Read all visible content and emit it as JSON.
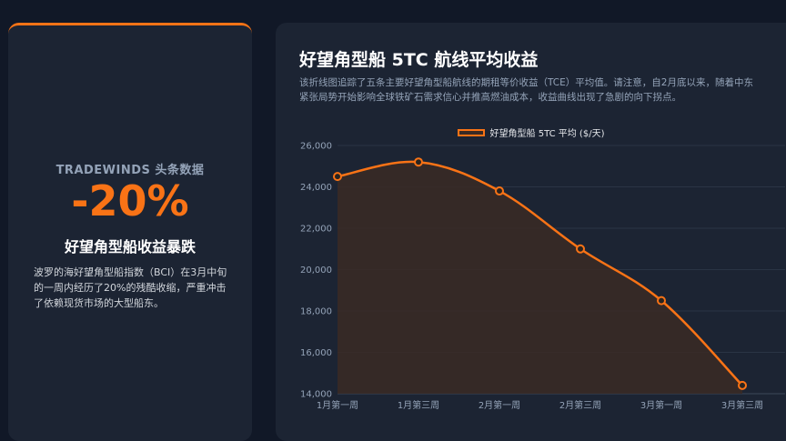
{
  "left_card": {
    "kicker": "TRADEWINDS 头条数据",
    "big_stat": "-20%",
    "headline": "好望角型船收益暴跌",
    "body": "波罗的海好望角型船指数（BCI）在3月中旬的一周内经历了20%的残酷收缩，严重冲击了依赖现货市场的大型船东。"
  },
  "right_card": {
    "title": "好望角型船 5TC 航线平均收益",
    "description": "该折线图追踪了五条主要好望角型船航线的期租等价收益（TCE）平均值。请注意，自2月底以来，随着中东紧张局势开始影响全球铁矿石需求信心并推高燃油成本，收益曲线出现了急剧的向下拐点。"
  },
  "colors": {
    "accent": "#f97316",
    "background": "#111827",
    "card": "#1c2433"
  },
  "chart_data": {
    "type": "line",
    "categories": [
      "1月第一周",
      "1月第三周",
      "2月第一周",
      "2月第三周",
      "3月第一周",
      "3月第三周"
    ],
    "series": [
      {
        "name": "好望角型船 5TC 平均 ($/天)",
        "values": [
          24500,
          25200,
          23800,
          21000,
          18500,
          14400
        ]
      }
    ],
    "ylim": [
      14000,
      26000
    ],
    "y_ticks": [
      14000,
      16000,
      18000,
      20000,
      22000,
      24000,
      26000
    ],
    "y_tick_labels": [
      "14,000",
      "16,000",
      "18,000",
      "20,000",
      "22,000",
      "24,000",
      "26,000"
    ],
    "grid": true,
    "legend": "top-center",
    "area_fill": true,
    "smooth": true
  }
}
